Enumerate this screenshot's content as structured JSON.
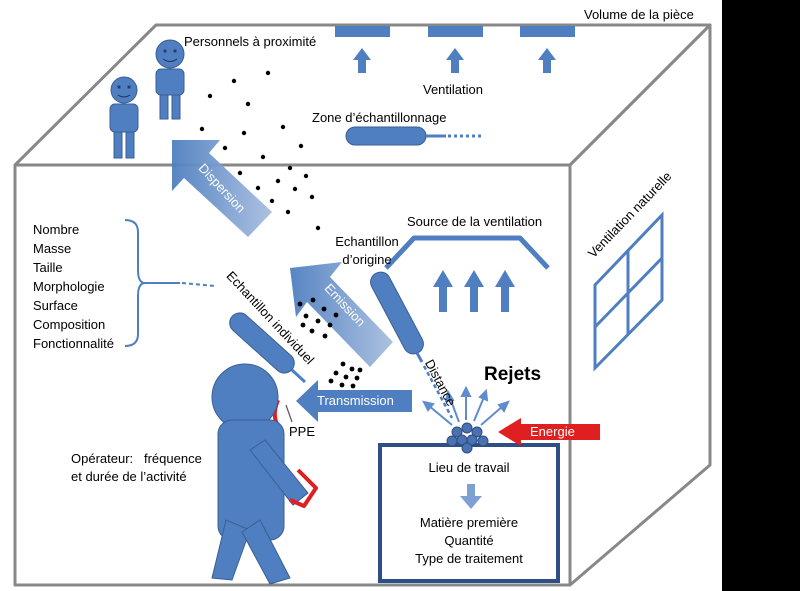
{
  "labels": {
    "volume": "Volume de la pièce",
    "personnels": "Personnels à proximité",
    "ventilation": "Ventilation",
    "zone": "Zone d’échantillonnage",
    "dispersion": "Dispersion",
    "ventilation_naturelle": "Ventilation naturelle",
    "source_ventilation": "Source de la ventilation",
    "echantillon_origine_1": "Echantillon",
    "echantillon_origine_2": "d’origine",
    "echantillon_individuel": "Echantillon individuel",
    "emission": "Emission",
    "transmission": "Transmission",
    "distance": "Distance",
    "rejets": "Rejets",
    "energie": "Energie",
    "ppe": "PPE",
    "operateur_1": "Opérateur:   fréquence",
    "operateur_2": "et durée de l’activité",
    "lieu": "Lieu de travail",
    "matiere": "Matière première",
    "quantite": "Quantité",
    "traitement": "Type de traitement"
  },
  "attributes": [
    "Nombre",
    "Masse",
    "Taille",
    "Morphologie",
    "Surface",
    "Composition",
    "Fonctionnalité"
  ],
  "colors": {
    "blue": "#4f7fc0",
    "blue_dark": "#3e6aa6",
    "blue_light": "#7fa0d2",
    "outline": "#888888",
    "red": "#e02020"
  }
}
